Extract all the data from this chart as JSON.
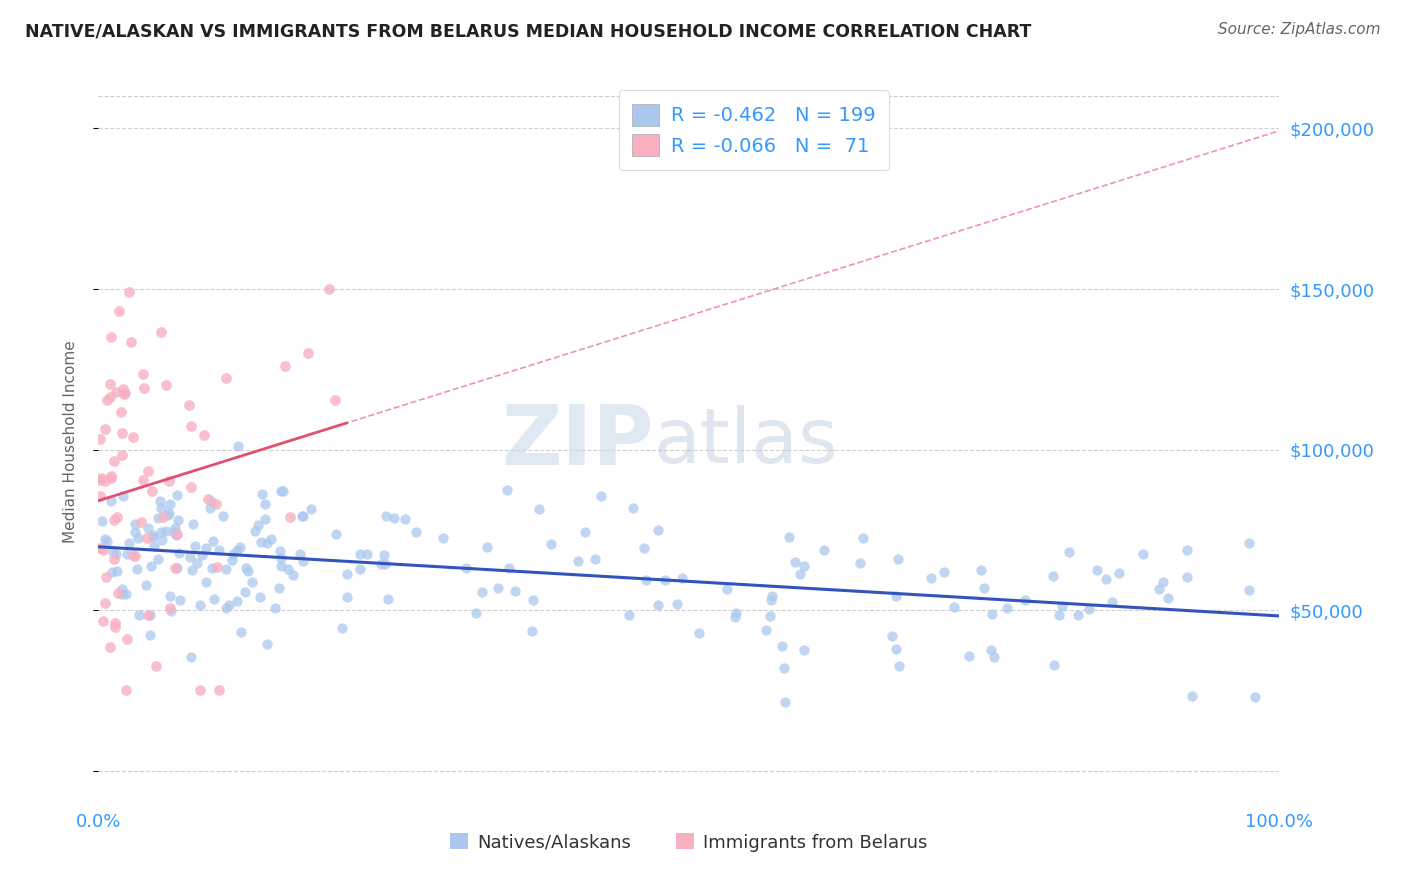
{
  "title": "NATIVE/ALASKAN VS IMMIGRANTS FROM BELARUS MEDIAN HOUSEHOLD INCOME CORRELATION CHART",
  "source": "Source: ZipAtlas.com",
  "ylabel": "Median Household Income",
  "x_min": 0.0,
  "x_max": 100.0,
  "y_min": -10000,
  "y_max": 215000,
  "yticks": [
    0,
    50000,
    100000,
    150000,
    200000
  ],
  "ytick_labels": [
    "",
    "$50,000",
    "$100,000",
    "$150,000",
    "$200,000"
  ],
  "blue_color": "#aac8ee",
  "blue_line_color": "#3355bb",
  "pink_color": "#f8b0c0",
  "pink_line_color": "#e05070",
  "r_blue": -0.462,
  "n_blue": 199,
  "r_pink": -0.066,
  "n_pink": 71,
  "watermark_zip": "ZIP",
  "watermark_atlas": "atlas",
  "background_color": "#ffffff",
  "title_color": "#222222",
  "axis_label_color": "#666666",
  "tick_color": "#3399ff",
  "grid_color": "#cccccc",
  "legend_label_blue": "R = -0.462   N = 199",
  "legend_label_pink": "R = -0.066   N =  71",
  "bottom_label_blue": "Natives/Alaskans",
  "bottom_label_pink": "Immigrants from Belarus"
}
